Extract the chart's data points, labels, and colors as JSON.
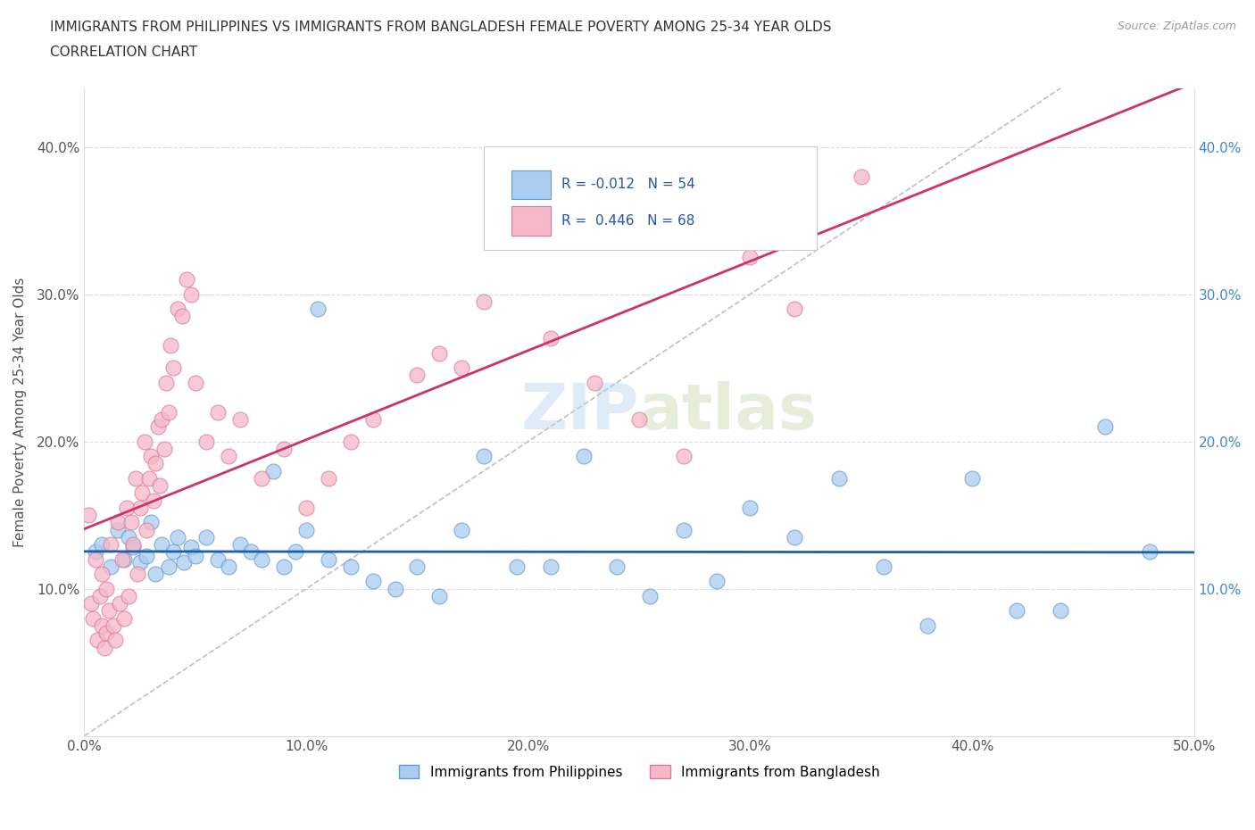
{
  "title_line1": "IMMIGRANTS FROM PHILIPPINES VS IMMIGRANTS FROM BANGLADESH FEMALE POVERTY AMONG 25-34 YEAR OLDS",
  "title_line2": "CORRELATION CHART",
  "source_text": "Source: ZipAtlas.com",
  "ylabel": "Female Poverty Among 25-34 Year Olds",
  "xlim": [
    0,
    0.5
  ],
  "ylim": [
    0,
    0.44
  ],
  "xticks": [
    0.0,
    0.1,
    0.2,
    0.3,
    0.4,
    0.5
  ],
  "xtick_labels": [
    "0.0%",
    "10.0%",
    "20.0%",
    "30.0%",
    "40.0%",
    "50.0%"
  ],
  "yticks": [
    0.0,
    0.1,
    0.2,
    0.3,
    0.4
  ],
  "ytick_labels": [
    "",
    "10.0%",
    "20.0%",
    "30.0%",
    "40.0%"
  ],
  "watermark": "ZIPatlas",
  "philippines_color": "#aaccf0",
  "philippines_edge": "#6699cc",
  "bangladesh_color": "#f5b8c8",
  "bangladesh_edge": "#dd7799",
  "trend_philippines_color": "#1a5fa8",
  "trend_bangladesh_color": "#cc3366",
  "diag_line_color": "#c0c0c0",
  "R_philippines": -0.012,
  "N_philippines": 54,
  "R_bangladesh": 0.446,
  "N_bangladesh": 68,
  "legend_label_philippines": "Immigrants from Philippines",
  "legend_label_bangladesh": "Immigrants from Bangladesh",
  "philippines_x": [
    0.005,
    0.008,
    0.012,
    0.015,
    0.018,
    0.02,
    0.022,
    0.025,
    0.028,
    0.03,
    0.032,
    0.035,
    0.038,
    0.04,
    0.042,
    0.045,
    0.048,
    0.05,
    0.055,
    0.06,
    0.065,
    0.07,
    0.075,
    0.08,
    0.085,
    0.09,
    0.095,
    0.1,
    0.105,
    0.11,
    0.12,
    0.13,
    0.14,
    0.15,
    0.16,
    0.17,
    0.18,
    0.195,
    0.21,
    0.225,
    0.24,
    0.255,
    0.27,
    0.285,
    0.3,
    0.32,
    0.34,
    0.36,
    0.38,
    0.4,
    0.42,
    0.44,
    0.46,
    0.48
  ],
  "philippines_y": [
    0.125,
    0.13,
    0.115,
    0.14,
    0.12,
    0.135,
    0.128,
    0.118,
    0.122,
    0.145,
    0.11,
    0.13,
    0.115,
    0.125,
    0.135,
    0.118,
    0.128,
    0.122,
    0.135,
    0.12,
    0.115,
    0.13,
    0.125,
    0.12,
    0.18,
    0.115,
    0.125,
    0.14,
    0.29,
    0.12,
    0.115,
    0.105,
    0.1,
    0.115,
    0.095,
    0.14,
    0.19,
    0.115,
    0.115,
    0.19,
    0.115,
    0.095,
    0.14,
    0.105,
    0.155,
    0.135,
    0.175,
    0.115,
    0.075,
    0.175,
    0.085,
    0.085,
    0.21,
    0.125
  ],
  "bangladesh_x": [
    0.002,
    0.003,
    0.004,
    0.005,
    0.006,
    0.007,
    0.008,
    0.008,
    0.009,
    0.01,
    0.01,
    0.011,
    0.012,
    0.013,
    0.014,
    0.015,
    0.016,
    0.017,
    0.018,
    0.019,
    0.02,
    0.021,
    0.022,
    0.023,
    0.024,
    0.025,
    0.026,
    0.027,
    0.028,
    0.029,
    0.03,
    0.031,
    0.032,
    0.033,
    0.034,
    0.035,
    0.036,
    0.037,
    0.038,
    0.039,
    0.04,
    0.042,
    0.044,
    0.046,
    0.048,
    0.05,
    0.055,
    0.06,
    0.065,
    0.07,
    0.08,
    0.09,
    0.1,
    0.11,
    0.12,
    0.13,
    0.15,
    0.16,
    0.17,
    0.18,
    0.19,
    0.21,
    0.23,
    0.25,
    0.27,
    0.3,
    0.32,
    0.35
  ],
  "bangladesh_y": [
    0.15,
    0.09,
    0.08,
    0.12,
    0.065,
    0.095,
    0.075,
    0.11,
    0.06,
    0.07,
    0.1,
    0.085,
    0.13,
    0.075,
    0.065,
    0.145,
    0.09,
    0.12,
    0.08,
    0.155,
    0.095,
    0.145,
    0.13,
    0.175,
    0.11,
    0.155,
    0.165,
    0.2,
    0.14,
    0.175,
    0.19,
    0.16,
    0.185,
    0.21,
    0.17,
    0.215,
    0.195,
    0.24,
    0.22,
    0.265,
    0.25,
    0.29,
    0.285,
    0.31,
    0.3,
    0.24,
    0.2,
    0.22,
    0.19,
    0.215,
    0.175,
    0.195,
    0.155,
    0.175,
    0.2,
    0.215,
    0.245,
    0.26,
    0.25,
    0.295,
    0.35,
    0.27,
    0.24,
    0.215,
    0.19,
    0.325,
    0.29,
    0.38
  ]
}
